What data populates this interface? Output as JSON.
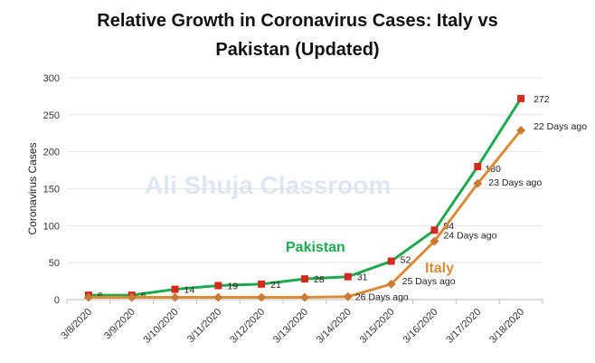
{
  "title_line1": "Relative Growth in Coronavirus Cases: Italy vs",
  "title_line2": "Pakistan (Updated)",
  "watermark": "Ali Shuja Classroom",
  "chart_data": {
    "type": "line",
    "title": "Relative Growth in Coronavirus Cases: Italy vs Pakistan (Updated)",
    "xlabel": "",
    "ylabel": "Coronavirus Cases",
    "ylim": [
      0,
      300
    ],
    "yticks": [
      0,
      50,
      100,
      150,
      200,
      250,
      300
    ],
    "grid": "horizontal",
    "categories": [
      "3/8/2020",
      "3/9/2020",
      "3/10/2020",
      "3/11/2020",
      "3/12/2020",
      "3/13/2020",
      "3/14/2020",
      "3/15/2020",
      "3/16/2020",
      "3/17/2020",
      "3/18/2020"
    ],
    "series": [
      {
        "name": "Pakistan",
        "line_color": "#1fa84f",
        "marker_color": "#d42a1e",
        "marker": "square",
        "values": [
          6,
          6,
          14,
          19,
          21,
          28,
          31,
          52,
          94,
          180,
          272
        ],
        "data_labels": [
          "6",
          "6",
          "14",
          "19",
          "21",
          "28",
          "31",
          "52",
          "94",
          "180",
          "272"
        ]
      },
      {
        "name": "Italy",
        "line_color": "#d98b3a",
        "marker_color": "#c97a34",
        "marker": "diamond",
        "values": [
          3,
          3,
          3,
          3,
          3,
          3,
          4,
          21,
          79,
          157,
          229
        ],
        "data_labels": [
          "",
          "",
          "",
          "",
          "",
          "",
          "26 Days ago",
          "25 Days ago",
          "24 Days ago",
          "23 Days ago",
          "22 Days ago"
        ]
      }
    ],
    "series_labels": [
      {
        "text": "Pakistan",
        "color": "#1fa84f"
      },
      {
        "text": "Italy",
        "color": "#d98b3a"
      }
    ]
  }
}
